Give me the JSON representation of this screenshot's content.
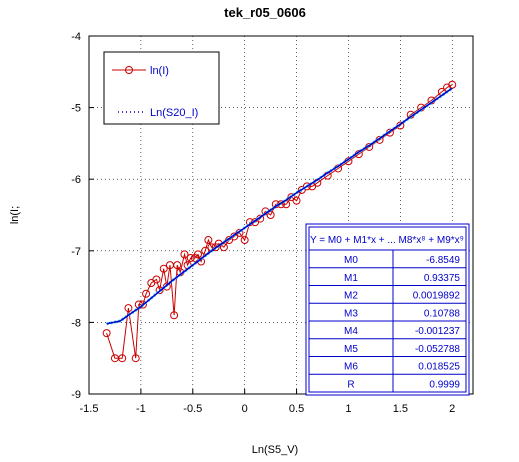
{
  "chart_data": {
    "type": "scatter",
    "title": "tek_r05_0606",
    "xlabel": "Ln(S5_V)",
    "ylabel": "ln(I;",
    "xlim": [
      -1.5,
      2.2
    ],
    "ylim": [
      -9,
      -4
    ],
    "xticks": [
      "-1.5",
      "-1",
      "-0.5",
      "0",
      "0.5",
      "1",
      "1.5",
      "2"
    ],
    "yticks": [
      "-9",
      "-8",
      "-7",
      "-6",
      "-5",
      "-4"
    ],
    "grid": true,
    "legend": {
      "placement": "top-left",
      "entries": [
        "ln(I)",
        "Ln(S20_I)"
      ]
    },
    "series": [
      {
        "name": "ln(I)",
        "color": "#cc0000",
        "marker": "circle",
        "x": [
          -1.33,
          -1.25,
          -1.18,
          -1.12,
          -1.05,
          -1.02,
          -0.98,
          -0.95,
          -0.9,
          -0.85,
          -0.82,
          -0.78,
          -0.75,
          -0.72,
          -0.68,
          -0.65,
          -0.62,
          -0.58,
          -0.55,
          -0.52,
          -0.48,
          -0.45,
          -0.42,
          -0.38,
          -0.35,
          -0.32,
          -0.28,
          -0.25,
          -0.2,
          -0.15,
          -0.1,
          -0.05,
          0.0,
          0.05,
          0.1,
          0.15,
          0.2,
          0.25,
          0.3,
          0.35,
          0.4,
          0.45,
          0.5,
          0.55,
          0.6,
          0.65,
          0.7,
          0.8,
          0.9,
          1.0,
          1.1,
          1.2,
          1.3,
          1.4,
          1.5,
          1.6,
          1.7,
          1.8,
          1.9,
          1.95,
          2.0
        ],
        "y": [
          -8.15,
          -8.5,
          -8.5,
          -7.8,
          -8.5,
          -7.75,
          -7.75,
          -7.6,
          -7.45,
          -7.4,
          -7.55,
          -7.25,
          -7.5,
          -7.2,
          -7.9,
          -7.2,
          -7.3,
          -7.05,
          -7.2,
          -7.1,
          -7.1,
          -7.05,
          -7.15,
          -7.0,
          -6.85,
          -6.95,
          -6.95,
          -6.9,
          -6.95,
          -6.85,
          -6.8,
          -6.75,
          -6.85,
          -6.6,
          -6.6,
          -6.55,
          -6.45,
          -6.5,
          -6.35,
          -6.35,
          -6.35,
          -6.25,
          -6.3,
          -6.15,
          -6.1,
          -6.1,
          -6.05,
          -5.95,
          -5.85,
          -5.75,
          -5.65,
          -5.55,
          -5.45,
          -5.35,
          -5.25,
          -5.1,
          -5.0,
          -4.9,
          -4.78,
          -4.72,
          -4.68
        ]
      },
      {
        "name": "Ln(S20_I)",
        "color": "#0000cc",
        "marker": "line",
        "x": [
          -1.33,
          -1.2,
          -1.1,
          -1.0,
          -0.9,
          -0.8,
          -0.7,
          -0.6,
          -0.5,
          -0.4,
          -0.3,
          -0.2,
          -0.1,
          0.0,
          0.1,
          0.2,
          0.3,
          0.4,
          0.5,
          0.6,
          0.7,
          0.8,
          0.9,
          1.0,
          1.1,
          1.2,
          1.3,
          1.4,
          1.5,
          1.6,
          1.7,
          1.8,
          1.9,
          2.0
        ],
        "y": [
          -8.02,
          -7.98,
          -7.88,
          -7.78,
          -7.66,
          -7.54,
          -7.42,
          -7.31,
          -7.2,
          -7.09,
          -6.98,
          -6.88,
          -6.78,
          -6.68,
          -6.58,
          -6.48,
          -6.38,
          -6.29,
          -6.19,
          -6.1,
          -6.01,
          -5.91,
          -5.82,
          -5.72,
          -5.62,
          -5.53,
          -5.43,
          -5.33,
          -5.23,
          -5.13,
          -5.03,
          -4.93,
          -4.83,
          -4.73
        ]
      }
    ],
    "fit_table": {
      "header": "Y = M0 + M1*x + ... M8*x⁸ + M9*x⁹",
      "rows": [
        {
          "name": "M0",
          "value": "-6.8549"
        },
        {
          "name": "M1",
          "value": "0.93375"
        },
        {
          "name": "M2",
          "value": "0.0019892"
        },
        {
          "name": "M3",
          "value": "0.10788"
        },
        {
          "name": "M4",
          "value": "-0.001237"
        },
        {
          "name": "M5",
          "value": "-0.052788"
        },
        {
          "name": "M6",
          "value": "0.018525"
        },
        {
          "name": "R",
          "value": "0.9999"
        }
      ]
    }
  }
}
